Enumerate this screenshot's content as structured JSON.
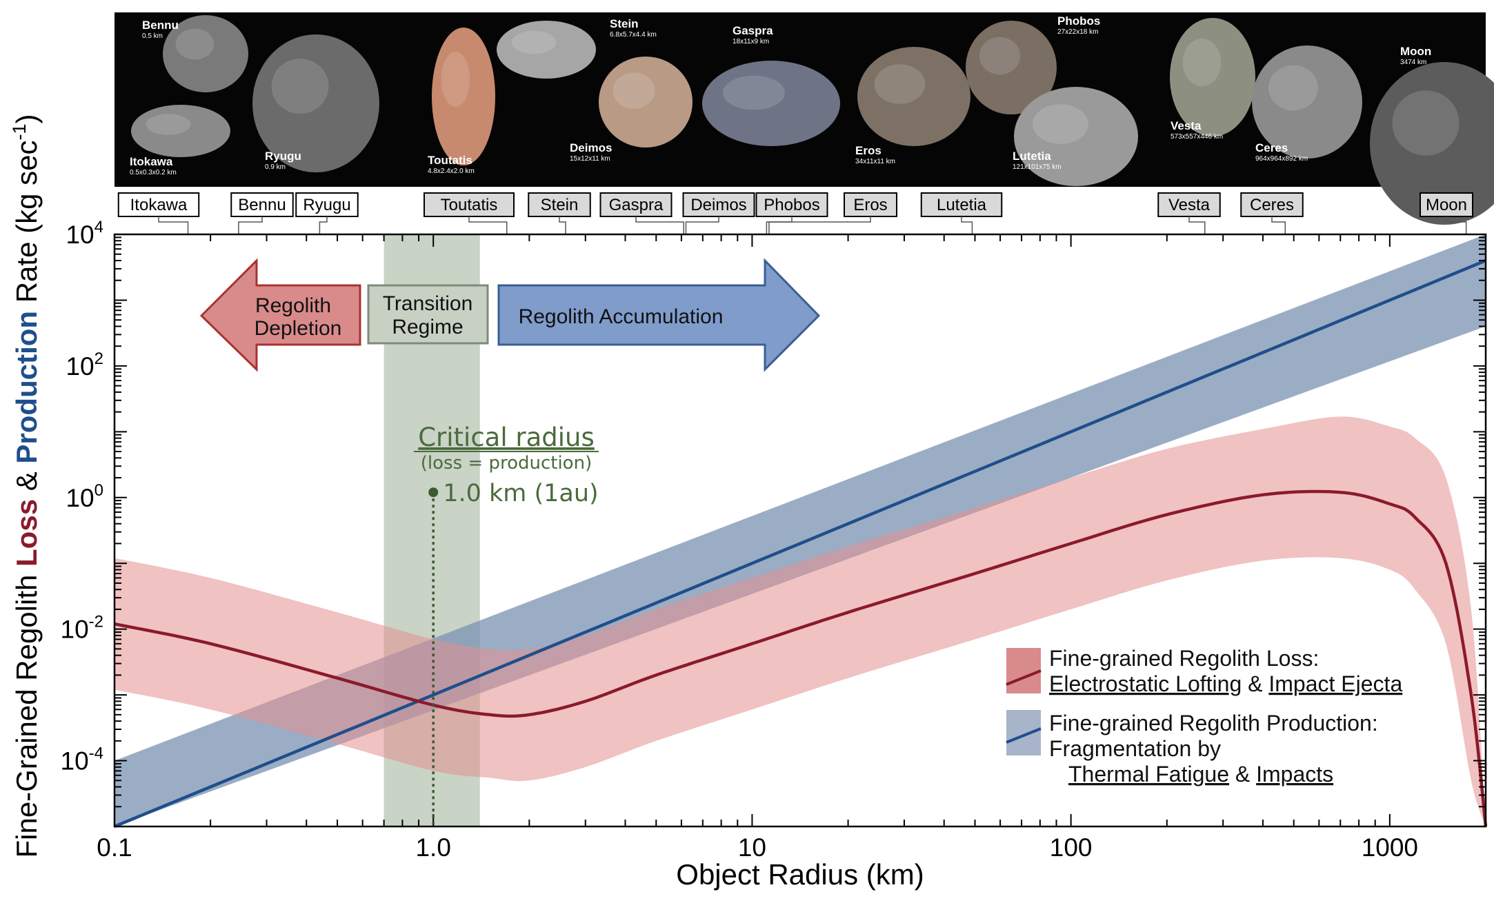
{
  "chart_data": {
    "type": "line",
    "xlabel": "Object Radius (km)",
    "ylabel_parts": [
      "Fine-Grained Regolith ",
      "Loss",
      " & ",
      "Production",
      " Rate (kg sec",
      "-1",
      ")"
    ],
    "x_scale": "log",
    "y_scale": "log",
    "xlim": [
      0.1,
      2000
    ],
    "ylim": [
      1e-05,
      10000
    ],
    "x_ticks": [
      {
        "value": 0.1,
        "label": "0.1"
      },
      {
        "value": 1,
        "label": "1.0"
      },
      {
        "value": 10,
        "label": "10"
      },
      {
        "value": 100,
        "label": "100"
      },
      {
        "value": 1000,
        "label": "1000"
      }
    ],
    "y_ticks": [
      {
        "value": 0.0001,
        "base": "10",
        "exp": "-4"
      },
      {
        "value": 0.01,
        "base": "10",
        "exp": "-2"
      },
      {
        "value": 1,
        "base": "10",
        "exp": "0"
      },
      {
        "value": 100,
        "base": "10",
        "exp": "2"
      },
      {
        "value": 10000,
        "base": "10",
        "exp": "4"
      }
    ],
    "colors": {
      "loss": "#8b1a2b",
      "loss_band": "#e8a8a8",
      "production": "#1f4e8c",
      "production_band": "#7f96b4",
      "transition": "#b7c4b3",
      "critical": "#4a6b3c"
    },
    "series": [
      {
        "key": "loss",
        "x": [
          0.1,
          0.2,
          0.5,
          1.0,
          1.5,
          2.0,
          3.0,
          5.0,
          10,
          20,
          50,
          100,
          200,
          400,
          700,
          1000,
          1200,
          1500,
          1800,
          2000
        ],
        "y": [
          0.012,
          0.006,
          0.0018,
          0.0007,
          0.0005,
          0.0005,
          0.0008,
          0.002,
          0.006,
          0.018,
          0.07,
          0.2,
          0.55,
          1.1,
          1.2,
          0.8,
          0.5,
          0.1,
          0.001,
          1e-05
        ],
        "band_low": [
          0.0012,
          0.0006,
          0.00018,
          7e-05,
          5.5e-05,
          5e-05,
          8e-05,
          0.0002,
          0.0006,
          0.0018,
          0.007,
          0.02,
          0.055,
          0.11,
          0.12,
          0.08,
          0.04,
          0.006,
          5e-05,
          1e-05
        ],
        "band_high": [
          0.12,
          0.06,
          0.018,
          0.007,
          0.005,
          0.005,
          0.008,
          0.02,
          0.06,
          0.18,
          0.7,
          2.0,
          5.5,
          11,
          17,
          12,
          8,
          2,
          0.02,
          1e-05
        ]
      },
      {
        "key": "production",
        "x": [
          0.1,
          2000
        ],
        "y": [
          9e-06,
          4000
        ],
        "band_low": [
          9e-07,
          400
        ],
        "band_high": [
          0.0001,
          40000
        ]
      }
    ],
    "transition_band_x": [
      0.7,
      1.4
    ],
    "critical_radius": {
      "x": 1.0,
      "y": 1.2,
      "title": "Critical radius",
      "subtitle": "(loss = production)",
      "value_label": "1.0 km (1au)"
    },
    "arrows": {
      "depletion": [
        "Regolith",
        "Depletion"
      ],
      "transition": [
        "Transition",
        "Regime"
      ],
      "accumulation": "Regolith Accumulation"
    },
    "legend": {
      "loss_title": "Fine-grained Regolith Loss:",
      "loss_line2": [
        {
          "t": "Electrostatic Lofting",
          "u": true
        },
        {
          "t": " & ",
          "u": false
        },
        {
          "t": "Impact Ejecta",
          "u": true
        }
      ],
      "prod_title": "Fine-grained Regolith Production:",
      "prod_line2": "Fragmentation by",
      "prod_line3": [
        {
          "t": "Thermal Fatigue",
          "u": true
        },
        {
          "t": " & ",
          "u": false
        },
        {
          "t": "Impacts",
          "u": true
        }
      ]
    },
    "bodies": [
      {
        "name": "Itokawa",
        "radius": 0.17,
        "dims": "0.5x0.3x0.2 km",
        "style": "white"
      },
      {
        "name": "Bennu",
        "radius": 0.245,
        "dims": "0.5 km",
        "style": "white"
      },
      {
        "name": "Ryugu",
        "radius": 0.44,
        "dims": "0.9 km",
        "style": "white"
      },
      {
        "name": "Toutatis",
        "radius": 1.7,
        "dims": "4.8x2.4x2.0 km",
        "style": "gray"
      },
      {
        "name": "Stein",
        "radius": 2.6,
        "dims": "6.8x5.7x4.4 km",
        "style": "gray"
      },
      {
        "name": "Gaspra",
        "radius": 6.1,
        "dims": "18x11x9 km",
        "style": "gray"
      },
      {
        "name": "Deimos",
        "radius": 6.2,
        "dims": "15x12x11 km",
        "style": "gray"
      },
      {
        "name": "Phobos",
        "radius": 11.1,
        "dims": "27x22x18 km",
        "style": "gray"
      },
      {
        "name": "Eros",
        "radius": 11.3,
        "dims": "34x11x11 km",
        "style": "gray"
      },
      {
        "name": "Lutetia",
        "radius": 49,
        "dims": "121x101x75 km",
        "style": "gray"
      },
      {
        "name": "Vesta",
        "radius": 263,
        "dims": "573x557x446 km",
        "style": "gray"
      },
      {
        "name": "Ceres",
        "radius": 470,
        "dims": "964x964x892 km",
        "style": "gray"
      },
      {
        "name": "Moon",
        "radius": 1737,
        "dims": "3474 km",
        "style": "gray"
      }
    ]
  }
}
